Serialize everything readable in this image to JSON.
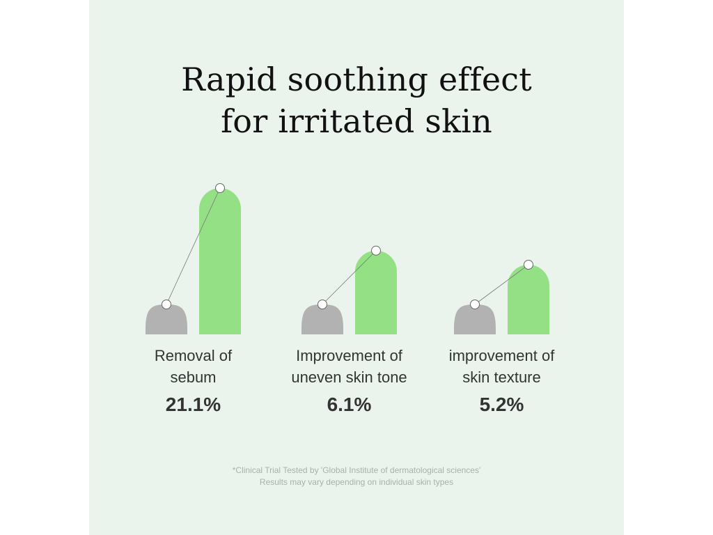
{
  "title": [
    "Rapid soothing effect",
    "for irritated skin"
  ],
  "colors": {
    "background": "#ebf3ed",
    "before_bar": "#b2b2b2",
    "after_bar": "#93e085",
    "label_text": "#333333",
    "footnote_text": "#a9b0ab"
  },
  "chart_data": {
    "type": "bar",
    "title": "Rapid soothing effect for irritated skin",
    "categories": [
      {
        "label_lines": [
          "Removal of",
          "sebum"
        ],
        "value_label": "21.1%"
      },
      {
        "label_lines": [
          "Improvement of",
          "uneven skin tone"
        ],
        "value_label": "6.1%"
      },
      {
        "label_lines": [
          "improvement of",
          "skin texture"
        ],
        "value_label": "5.2%"
      }
    ],
    "series": [
      {
        "values": [
          1.0,
          1.0,
          1.0
        ]
      },
      {
        "values": [
          1.211,
          1.061,
          1.052
        ]
      }
    ],
    "improvement_percent": [
      21.1,
      6.1,
      5.2
    ],
    "connector_lines": true,
    "grid": false,
    "legend": "none"
  },
  "footnote": [
    "*Clinical Trial Tested by 'Global Institute of dermatological sciences'",
    "Results may vary depending on individual skin types"
  ]
}
